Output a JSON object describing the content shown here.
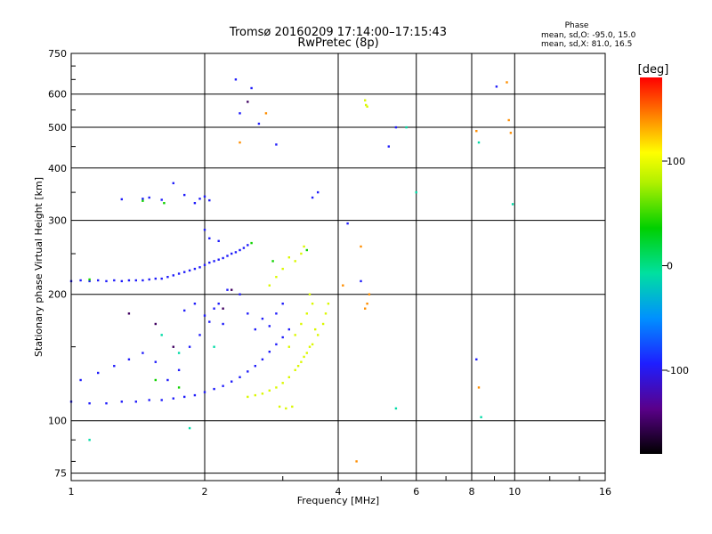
{
  "title_line1": "Tromsø 20160209 17:14:00–17:15:43",
  "title_line2": "RwPretec (8p)",
  "phase_info": {
    "heading": "Phase",
    "line_o": "mean, sd,O: -95.0, 15.0",
    "line_x": "mean, sd,X:  81.0, 16.5"
  },
  "colorbar": {
    "label": "[deg]",
    "ticks": [
      {
        "value": 100,
        "label": "100"
      },
      {
        "value": 0,
        "label": "0"
      },
      {
        "value": -100,
        "label": "-100"
      }
    ],
    "range": [
      -180,
      180
    ]
  },
  "chart_data": {
    "type": "scatter",
    "xlabel": "Frequency [MHz]",
    "ylabel": "Stationary phase Virtual Height [km]",
    "x_scale": "log",
    "y_scale": "log",
    "xlim": [
      1,
      16
    ],
    "ylim": [
      72,
      750
    ],
    "x_ticks": [
      1,
      2,
      4,
      6,
      8,
      10,
      16
    ],
    "y_ticks": [
      75,
      100,
      200,
      300,
      400,
      500,
      600,
      750
    ],
    "grid": true,
    "series": [
      {
        "color_value": -95,
        "points": [
          [
            1.0,
            215
          ],
          [
            1.05,
            216
          ],
          [
            1.1,
            215
          ],
          [
            1.15,
            216
          ],
          [
            1.2,
            215
          ],
          [
            1.25,
            216
          ],
          [
            1.3,
            215
          ],
          [
            1.35,
            216
          ],
          [
            1.4,
            216
          ],
          [
            1.45,
            216
          ],
          [
            1.5,
            217
          ],
          [
            1.55,
            218
          ],
          [
            1.6,
            218
          ],
          [
            1.65,
            220
          ],
          [
            1.7,
            222
          ],
          [
            1.75,
            224
          ],
          [
            1.8,
            226
          ],
          [
            1.85,
            228
          ],
          [
            1.9,
            230
          ],
          [
            1.95,
            232
          ],
          [
            2.0,
            235
          ],
          [
            2.05,
            238
          ],
          [
            2.1,
            240
          ],
          [
            2.15,
            242
          ],
          [
            2.2,
            244
          ],
          [
            2.25,
            247
          ],
          [
            2.3,
            250
          ],
          [
            2.35,
            252
          ],
          [
            2.4,
            255
          ],
          [
            2.45,
            258
          ],
          [
            2.5,
            262
          ],
          [
            1.3,
            337
          ],
          [
            1.45,
            338
          ],
          [
            1.5,
            340
          ],
          [
            1.6,
            336
          ],
          [
            1.7,
            368
          ],
          [
            1.8,
            345
          ],
          [
            1.9,
            330
          ],
          [
            1.95,
            338
          ],
          [
            2.0,
            342
          ],
          [
            2.05,
            335
          ],
          [
            1.0,
            111
          ],
          [
            1.1,
            110
          ],
          [
            1.2,
            110
          ],
          [
            1.3,
            111
          ],
          [
            1.4,
            111
          ],
          [
            1.5,
            112
          ],
          [
            1.6,
            112
          ],
          [
            1.7,
            113
          ],
          [
            1.8,
            114
          ],
          [
            1.9,
            115
          ],
          [
            2.0,
            117
          ],
          [
            2.1,
            119
          ],
          [
            2.2,
            121
          ],
          [
            2.3,
            124
          ],
          [
            2.4,
            127
          ],
          [
            2.5,
            131
          ],
          [
            2.6,
            135
          ],
          [
            2.7,
            140
          ],
          [
            2.8,
            146
          ],
          [
            2.9,
            152
          ],
          [
            3.0,
            158
          ],
          [
            3.1,
            165
          ],
          [
            1.8,
            183
          ],
          [
            1.9,
            190
          ],
          [
            2.0,
            178
          ],
          [
            2.1,
            185
          ],
          [
            2.2,
            170
          ],
          [
            1.85,
            150
          ],
          [
            1.95,
            160
          ],
          [
            2.05,
            172
          ],
          [
            2.15,
            190
          ],
          [
            2.25,
            205
          ],
          [
            2.4,
            200
          ],
          [
            2.5,
            180
          ],
          [
            2.6,
            165
          ],
          [
            2.7,
            175
          ],
          [
            2.8,
            168
          ],
          [
            2.9,
            180
          ],
          [
            3.0,
            190
          ],
          [
            2.0,
            285
          ],
          [
            2.05,
            272
          ],
          [
            2.15,
            268
          ],
          [
            2.35,
            650
          ],
          [
            2.55,
            620
          ],
          [
            2.65,
            510
          ],
          [
            2.4,
            540
          ],
          [
            2.9,
            455
          ],
          [
            3.5,
            340
          ],
          [
            3.6,
            350
          ],
          [
            4.2,
            295
          ],
          [
            4.5,
            215
          ],
          [
            1.05,
            125
          ],
          [
            1.15,
            130
          ],
          [
            1.25,
            135
          ],
          [
            1.35,
            140
          ],
          [
            1.45,
            145
          ],
          [
            1.55,
            138
          ],
          [
            1.65,
            125
          ],
          [
            1.75,
            132
          ],
          [
            5.2,
            450
          ],
          [
            5.4,
            500
          ],
          [
            8.2,
            140
          ],
          [
            9.1,
            625
          ]
        ]
      },
      {
        "color_value": 95,
        "points": [
          [
            2.5,
            114
          ],
          [
            2.6,
            115
          ],
          [
            2.7,
            116
          ],
          [
            2.8,
            118
          ],
          [
            2.9,
            120
          ],
          [
            3.0,
            123
          ],
          [
            3.1,
            127
          ],
          [
            3.2,
            132
          ],
          [
            3.3,
            138
          ],
          [
            3.4,
            145
          ],
          [
            3.5,
            152
          ],
          [
            3.6,
            160
          ],
          [
            3.7,
            170
          ],
          [
            3.75,
            180
          ],
          [
            3.8,
            190
          ],
          [
            3.1,
            150
          ],
          [
            3.2,
            160
          ],
          [
            3.3,
            170
          ],
          [
            3.4,
            180
          ],
          [
            3.5,
            190
          ],
          [
            3.45,
            200
          ],
          [
            3.2,
            240
          ],
          [
            3.3,
            250
          ],
          [
            3.35,
            260
          ],
          [
            3.1,
            245
          ],
          [
            3.0,
            230
          ],
          [
            2.9,
            220
          ],
          [
            2.8,
            210
          ],
          [
            2.95,
            108
          ],
          [
            3.05,
            107
          ],
          [
            3.15,
            108
          ],
          [
            3.25,
            135
          ],
          [
            3.35,
            142
          ],
          [
            3.45,
            150
          ],
          [
            3.55,
            165
          ],
          [
            4.6,
            580
          ],
          [
            4.62,
            565
          ],
          [
            4.65,
            560
          ]
        ]
      },
      {
        "color_value": 140,
        "points": [
          [
            4.5,
            260
          ],
          [
            4.7,
            200
          ],
          [
            4.6,
            185
          ],
          [
            4.65,
            190
          ],
          [
            4.4,
            80
          ],
          [
            8.2,
            490
          ],
          [
            8.3,
            120
          ],
          [
            9.6,
            640
          ],
          [
            9.7,
            520
          ],
          [
            9.8,
            485
          ],
          [
            4.1,
            210
          ],
          [
            2.75,
            540
          ],
          [
            2.4,
            460
          ]
        ]
      },
      {
        "color_value": -10,
        "points": [
          [
            1.85,
            96
          ],
          [
            5.7,
            500
          ],
          [
            6.0,
            350
          ],
          [
            8.3,
            460
          ],
          [
            9.9,
            328
          ],
          [
            5.4,
            107
          ],
          [
            8.4,
            102
          ],
          [
            1.6,
            160
          ],
          [
            1.75,
            145
          ],
          [
            2.1,
            150
          ],
          [
            1.1,
            90
          ]
        ]
      },
      {
        "color_value": 40,
        "points": [
          [
            1.45,
            334
          ],
          [
            1.62,
            330
          ],
          [
            2.55,
            265
          ],
          [
            2.85,
            240
          ],
          [
            3.4,
            255
          ],
          [
            1.1,
            217
          ],
          [
            1.75,
            120
          ],
          [
            1.55,
            125
          ]
        ]
      },
      {
        "color_value": -150,
        "points": [
          [
            1.35,
            180
          ],
          [
            1.55,
            170
          ],
          [
            2.3,
            205
          ],
          [
            2.5,
            575
          ],
          [
            1.7,
            150
          ],
          [
            2.2,
            185
          ]
        ]
      }
    ]
  }
}
